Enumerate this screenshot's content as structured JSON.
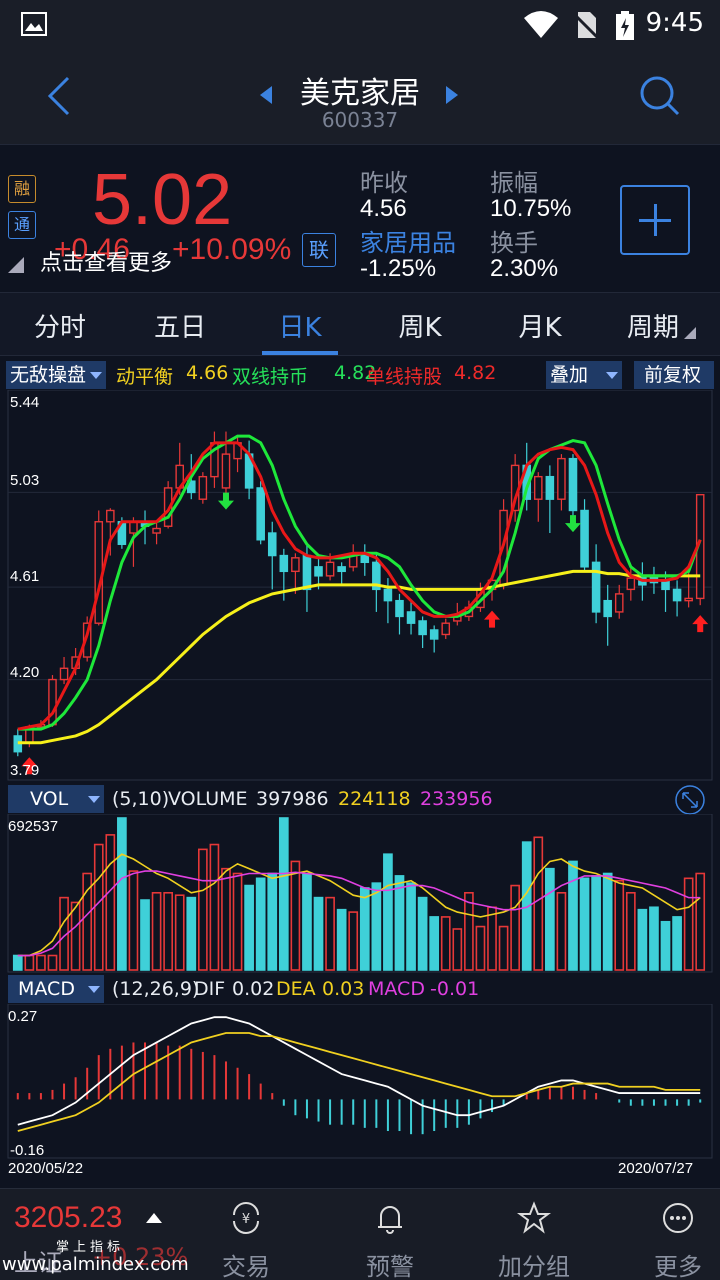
{
  "status": {
    "time": "9:45"
  },
  "header": {
    "name": "美克家居",
    "code": "600337"
  },
  "quote": {
    "price": "5.02",
    "change": "+0.46",
    "change_pct": "+10.09%",
    "more_label": "点击查看更多",
    "tag_rong": "融",
    "tag_tong": "通",
    "lian": "联",
    "prev_close_label": "昨收",
    "prev_close": "4.56",
    "amplitude_label": "振幅",
    "amplitude": "10.75%",
    "sector_label": "家居用品",
    "sector_change": "-1.25%",
    "turnover_label": "换手",
    "turnover": "2.30%"
  },
  "tabs": [
    "分时",
    "五日",
    "日K",
    "周K",
    "月K",
    "周期"
  ],
  "indicator": {
    "dropdown": "无敌操盘",
    "l1_name": "动平衡",
    "l1_val": "4.66",
    "l2_name": "双线持币",
    "l2_val": "4.82",
    "l3_name": "单线持股",
    "l3_val": "4.82",
    "overlay": "叠加",
    "adjust": "前复权"
  },
  "vol": {
    "dropdown": "VOL",
    "params": "(5,10)",
    "label": "VOLUME",
    "v1": "397986",
    "v2": "224118",
    "v3": "233956",
    "max": "692537"
  },
  "macd": {
    "dropdown": "MACD",
    "params": "(12,26,9)",
    "dif_label": "DIF",
    "dif": "0.02",
    "dea_label": "DEA",
    "dea": "0.03",
    "macd_label": "MACD",
    "macd": "-0.01",
    "max": "0.27",
    "min": "-0.16"
  },
  "dates": {
    "start": "2020/05/22",
    "end": "2020/07/27"
  },
  "bottom": {
    "index_value": "3205.23",
    "index_name": "上证",
    "index_change": "+0.23%",
    "items": [
      "交易",
      "预警",
      "加分组",
      "更多"
    ],
    "watermark_top": "掌上指标",
    "watermark_url": "www.palmindex.com"
  },
  "colors": {
    "up": "#e63838",
    "down": "#3fd0d8",
    "accent": "#3b82e0"
  },
  "chart_data": {
    "type": "candlestick",
    "ylim": [
      3.79,
      5.44
    ],
    "yticks": [
      "5.44",
      "5.03",
      "4.61",
      "4.20",
      "3.79"
    ],
    "candles": [
      [
        3.95,
        3.88,
        3.98,
        3.86
      ],
      [
        3.92,
        3.99,
        4.0,
        3.9
      ],
      [
        3.99,
        4.0,
        4.02,
        3.98
      ],
      [
        4.0,
        4.2,
        4.22,
        3.99
      ],
      [
        4.2,
        4.25,
        4.3,
        4.18
      ],
      [
        4.25,
        4.3,
        4.34,
        4.22
      ],
      [
        4.3,
        4.45,
        4.48,
        4.28
      ],
      [
        4.45,
        4.9,
        4.95,
        4.44
      ],
      [
        4.9,
        4.95,
        4.96,
        4.75
      ],
      [
        4.9,
        4.8,
        4.92,
        4.78
      ],
      [
        4.85,
        4.9,
        4.92,
        4.7
      ],
      [
        4.9,
        4.88,
        4.95,
        4.8
      ],
      [
        4.85,
        4.87,
        4.9,
        4.8
      ],
      [
        4.88,
        5.05,
        5.08,
        4.87
      ],
      [
        5.05,
        5.15,
        5.25,
        5.02
      ],
      [
        5.08,
        5.03,
        5.2,
        5.0
      ],
      [
        5.0,
        5.1,
        5.12,
        4.98
      ],
      [
        5.1,
        5.25,
        5.3,
        5.05
      ],
      [
        5.05,
        5.2,
        5.3,
        5.02
      ],
      [
        5.18,
        5.25,
        5.28,
        5.12
      ],
      [
        5.2,
        5.05,
        5.26,
        5.0
      ],
      [
        5.05,
        4.82,
        5.08,
        4.8
      ],
      [
        4.85,
        4.75,
        4.9,
        4.6
      ],
      [
        4.75,
        4.68,
        4.78,
        4.55
      ],
      [
        4.68,
        4.74,
        4.76,
        4.58
      ],
      [
        4.75,
        4.6,
        4.8,
        4.5
      ],
      [
        4.7,
        4.66,
        4.75,
        4.6
      ],
      [
        4.66,
        4.72,
        4.76,
        4.64
      ],
      [
        4.7,
        4.68,
        4.72,
        4.62
      ],
      [
        4.7,
        4.76,
        4.8,
        4.68
      ],
      [
        4.76,
        4.72,
        4.8,
        4.66
      ],
      [
        4.72,
        4.6,
        4.76,
        4.5
      ],
      [
        4.6,
        4.55,
        4.65,
        4.45
      ],
      [
        4.55,
        4.48,
        4.58,
        4.4
      ],
      [
        4.5,
        4.45,
        4.55,
        4.4
      ],
      [
        4.46,
        4.4,
        4.48,
        4.34
      ],
      [
        4.42,
        4.38,
        4.44,
        4.32
      ],
      [
        4.4,
        4.45,
        4.47,
        4.38
      ],
      [
        4.46,
        4.48,
        4.54,
        4.44
      ],
      [
        4.48,
        4.52,
        4.55,
        4.46
      ],
      [
        4.52,
        4.6,
        4.63,
        4.5
      ],
      [
        4.6,
        4.64,
        4.66,
        4.55
      ],
      [
        4.62,
        4.95,
        5.0,
        4.6
      ],
      [
        4.95,
        5.15,
        5.2,
        4.9
      ],
      [
        5.15,
        5.0,
        5.25,
        4.95
      ],
      [
        5.0,
        5.1,
        5.12,
        4.9
      ],
      [
        5.1,
        5.0,
        5.15,
        4.85
      ],
      [
        5.0,
        5.18,
        5.2,
        4.95
      ],
      [
        5.18,
        4.95,
        5.2,
        4.9
      ],
      [
        4.95,
        4.7,
        5.0,
        4.68
      ],
      [
        4.72,
        4.5,
        4.8,
        4.45
      ],
      [
        4.55,
        4.48,
        4.62,
        4.35
      ],
      [
        4.5,
        4.58,
        4.62,
        4.47
      ],
      [
        4.6,
        4.65,
        4.7,
        4.55
      ],
      [
        4.66,
        4.62,
        4.72,
        4.55
      ],
      [
        4.66,
        4.63,
        4.7,
        4.58
      ],
      [
        4.64,
        4.6,
        4.68,
        4.5
      ],
      [
        4.6,
        4.55,
        4.64,
        4.48
      ],
      [
        4.55,
        4.56,
        4.7,
        4.52
      ],
      [
        4.56,
        5.02,
        5.02,
        4.53
      ]
    ],
    "balance_line": [
      3.92,
      3.92,
      3.92,
      3.93,
      3.94,
      3.95,
      3.97,
      4.0,
      4.04,
      4.08,
      4.12,
      4.16,
      4.2,
      4.25,
      4.3,
      4.35,
      4.4,
      4.44,
      4.48,
      4.51,
      4.54,
      4.56,
      4.58,
      4.59,
      4.6,
      4.61,
      4.62,
      4.62,
      4.62,
      4.62,
      4.62,
      4.62,
      4.61,
      4.61,
      4.6,
      4.6,
      4.6,
      4.6,
      4.6,
      4.6,
      4.6,
      4.61,
      4.62,
      4.63,
      4.64,
      4.65,
      4.66,
      4.67,
      4.68,
      4.68,
      4.68,
      4.67,
      4.67,
      4.66,
      4.66,
      4.66,
      4.66,
      4.66,
      4.66,
      4.66
    ],
    "green_line": [
      3.98,
      3.98,
      3.98,
      4.0,
      4.05,
      4.12,
      4.2,
      4.35,
      4.55,
      4.72,
      4.83,
      4.88,
      4.9,
      4.92,
      5.0,
      5.1,
      5.18,
      5.22,
      5.25,
      5.28,
      5.28,
      5.25,
      5.15,
      5.0,
      4.88,
      4.8,
      4.75,
      4.74,
      4.74,
      4.75,
      4.76,
      4.76,
      4.74,
      4.7,
      4.62,
      4.55,
      4.5,
      4.48,
      4.48,
      4.5,
      4.55,
      4.6,
      4.68,
      4.85,
      5.05,
      5.18,
      5.22,
      5.24,
      5.26,
      5.25,
      5.15,
      4.98,
      4.82,
      4.7,
      4.66,
      4.66,
      4.66,
      4.66,
      4.68,
      4.82
    ],
    "red_line": [
      3.98,
      3.99,
      4.0,
      4.05,
      4.15,
      4.25,
      4.4,
      4.6,
      4.82,
      4.9,
      4.9,
      4.9,
      4.9,
      4.95,
      5.05,
      5.12,
      5.2,
      5.25,
      5.25,
      5.25,
      5.2,
      5.1,
      4.95,
      4.85,
      4.78,
      4.75,
      4.74,
      4.74,
      4.75,
      4.76,
      4.76,
      4.74,
      4.68,
      4.6,
      4.55,
      4.5,
      4.48,
      4.48,
      4.49,
      4.52,
      4.58,
      4.65,
      4.8,
      5.0,
      5.15,
      5.2,
      5.22,
      5.23,
      5.22,
      5.15,
      5.02,
      4.85,
      4.72,
      4.66,
      4.64,
      4.64,
      4.64,
      4.65,
      4.7,
      4.82
    ],
    "buy_arrows": [
      1,
      41,
      59
    ],
    "sell_arrows": [
      18,
      48
    ],
    "volume": [
      60,
      60,
      60,
      60,
      300,
      280,
      400,
      520,
      560,
      630,
      410,
      290,
      320,
      320,
      310,
      300,
      500,
      520,
      420,
      400,
      350,
      380,
      400,
      630,
      450,
      400,
      300,
      300,
      250,
      240,
      340,
      360,
      480,
      390,
      360,
      300,
      220,
      220,
      170,
      320,
      180,
      260,
      180,
      350,
      530,
      550,
      420,
      320,
      450,
      380,
      390,
      400,
      370,
      320,
      250,
      260,
      200,
      220,
      380,
      400
    ],
    "vol_ma5": [
      60,
      60,
      80,
      120,
      200,
      260,
      330,
      380,
      440,
      480,
      460,
      430,
      400,
      380,
      350,
      320,
      330,
      360,
      410,
      440,
      420,
      400,
      380,
      390,
      400,
      410,
      390,
      370,
      340,
      310,
      300,
      320,
      350,
      360,
      370,
      340,
      300,
      260,
      240,
      230,
      220,
      230,
      240,
      260,
      320,
      400,
      450,
      460,
      430,
      410,
      400,
      380,
      360,
      350,
      340,
      310,
      280,
      250,
      260,
      300
    ],
    "vol_ma10": [
      60,
      60,
      70,
      90,
      140,
      180,
      230,
      280,
      330,
      380,
      400,
      410,
      410,
      400,
      390,
      380,
      370,
      370,
      380,
      390,
      400,
      400,
      400,
      400,
      405,
      400,
      395,
      390,
      380,
      360,
      340,
      330,
      330,
      340,
      350,
      350,
      340,
      320,
      300,
      280,
      270,
      260,
      250,
      250,
      260,
      290,
      320,
      350,
      370,
      390,
      390,
      390,
      380,
      370,
      360,
      350,
      340,
      320,
      300,
      300
    ],
    "macd_hist": [
      0.02,
      0.02,
      0.02,
      0.03,
      0.05,
      0.07,
      0.1,
      0.14,
      0.16,
      0.17,
      0.18,
      0.18,
      0.18,
      0.17,
      0.17,
      0.16,
      0.15,
      0.14,
      0.12,
      0.1,
      0.08,
      0.05,
      0.02,
      -0.02,
      -0.05,
      -0.06,
      -0.07,
      -0.08,
      -0.08,
      -0.08,
      -0.09,
      -0.09,
      -0.1,
      -0.1,
      -0.11,
      -0.11,
      -0.1,
      -0.09,
      -0.09,
      -0.08,
      -0.06,
      -0.04,
      -0.02,
      0.0,
      0.02,
      0.03,
      0.04,
      0.04,
      0.04,
      0.03,
      0.02,
      0.0,
      -0.01,
      -0.02,
      -0.02,
      -0.02,
      -0.02,
      -0.02,
      -0.02,
      -0.01
    ],
    "dif": [
      -0.08,
      -0.07,
      -0.06,
      -0.05,
      -0.03,
      -0.01,
      0.02,
      0.05,
      0.08,
      0.11,
      0.14,
      0.16,
      0.18,
      0.2,
      0.22,
      0.24,
      0.25,
      0.26,
      0.26,
      0.25,
      0.24,
      0.22,
      0.2,
      0.18,
      0.16,
      0.14,
      0.12,
      0.1,
      0.08,
      0.07,
      0.06,
      0.05,
      0.04,
      0.02,
      0.0,
      -0.02,
      -0.03,
      -0.04,
      -0.05,
      -0.05,
      -0.04,
      -0.03,
      -0.02,
      0.0,
      0.02,
      0.04,
      0.05,
      0.06,
      0.06,
      0.05,
      0.04,
      0.03,
      0.02,
      0.02,
      0.02,
      0.02,
      0.02,
      0.02,
      0.02,
      0.02
    ],
    "dea": [
      -0.1,
      -0.09,
      -0.08,
      -0.07,
      -0.06,
      -0.05,
      -0.03,
      -0.01,
      0.02,
      0.05,
      0.08,
      0.1,
      0.12,
      0.14,
      0.16,
      0.18,
      0.19,
      0.2,
      0.21,
      0.21,
      0.21,
      0.2,
      0.2,
      0.19,
      0.18,
      0.17,
      0.16,
      0.15,
      0.14,
      0.13,
      0.12,
      0.11,
      0.1,
      0.09,
      0.08,
      0.07,
      0.06,
      0.05,
      0.04,
      0.03,
      0.02,
      0.01,
      0.01,
      0.01,
      0.02,
      0.03,
      0.04,
      0.04,
      0.05,
      0.05,
      0.05,
      0.05,
      0.04,
      0.04,
      0.04,
      0.04,
      0.03,
      0.03,
      0.03,
      0.03
    ]
  }
}
